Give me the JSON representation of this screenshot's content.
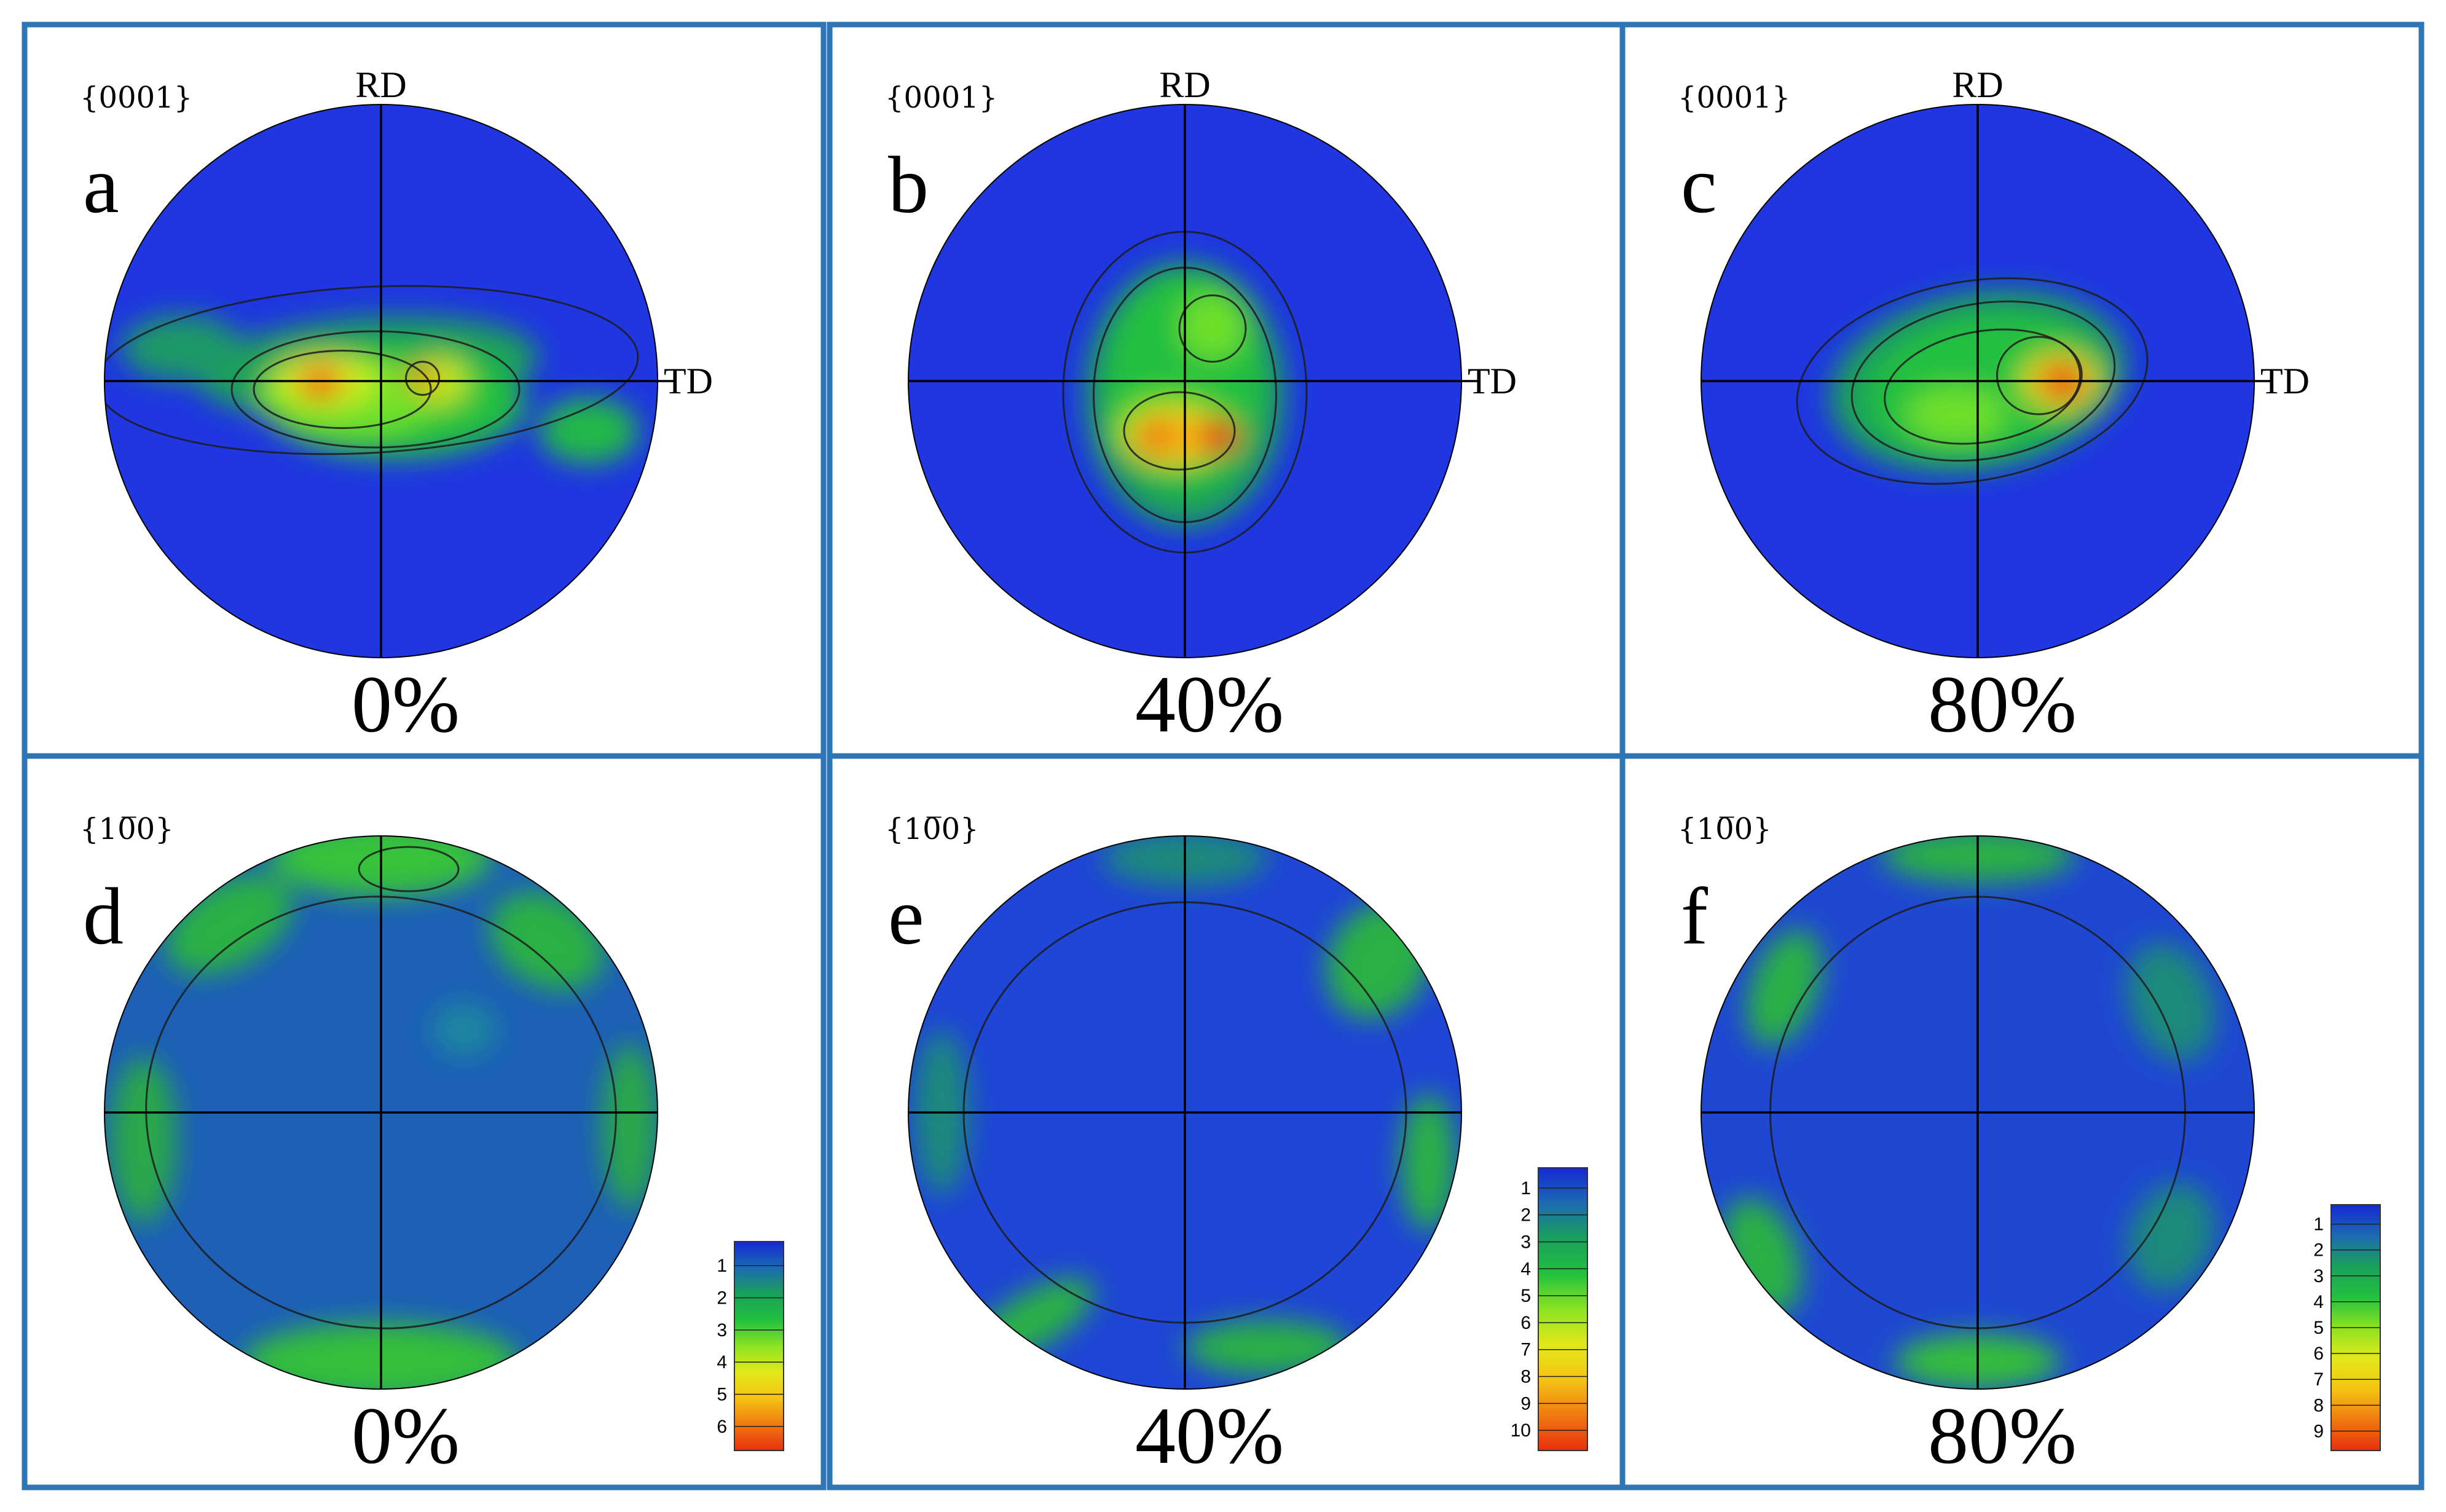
{
  "figure": {
    "panels": [
      {
        "id": "a",
        "letter": "a",
        "pole_figure": "{0001}",
        "strain": "0%",
        "show_axis_labels": true,
        "rd_label": "RD",
        "td_label": "TD",
        "background": "#1f36e0",
        "blobs": [
          {
            "u": -0.05,
            "v": -0.05,
            "rx": 0.62,
            "ry": 0.18,
            "rot": -4,
            "c": "#1aa05a"
          },
          {
            "u": 0.05,
            "v": 0.08,
            "rx": 0.47,
            "ry": 0.2,
            "rot": 0,
            "c": "#22c040"
          },
          {
            "u": -0.72,
            "v": -0.12,
            "rx": 0.22,
            "ry": 0.12,
            "rot": 0,
            "c": "#1a9966"
          },
          {
            "u": 0.75,
            "v": 0.18,
            "rx": 0.18,
            "ry": 0.12,
            "rot": 0,
            "c": "#22b84a"
          },
          {
            "u": -0.12,
            "v": 0.06,
            "rx": 0.33,
            "ry": 0.14,
            "rot": 0,
            "c": "#6ee02a"
          },
          {
            "u": -0.2,
            "v": 0.0,
            "rx": 0.2,
            "ry": 0.1,
            "rot": 0,
            "c": "#c2ee1a"
          },
          {
            "u": 0.22,
            "v": 0.0,
            "rx": 0.1,
            "ry": 0.09,
            "rot": 0,
            "c": "#bfe81a"
          },
          {
            "u": -0.22,
            "v": 0.0,
            "rx": 0.1,
            "ry": 0.07,
            "rot": 0,
            "c": "#f4c414"
          },
          {
            "u": -0.22,
            "v": 0.01,
            "rx": 0.06,
            "ry": 0.05,
            "rot": 0,
            "c": "#e82e10"
          },
          {
            "u": 0.15,
            "v": -0.01,
            "rx": 0.05,
            "ry": 0.05,
            "rot": 0,
            "c": "#f07a10"
          }
        ],
        "contours": [
          {
            "u": -0.05,
            "v": -0.04,
            "rx": 0.98,
            "ry": 0.3,
            "rot": -3
          },
          {
            "u": -0.02,
            "v": 0.03,
            "rx": 0.52,
            "ry": 0.21,
            "rot": 0
          },
          {
            "u": -0.14,
            "v": 0.03,
            "rx": 0.32,
            "ry": 0.14,
            "rot": 0
          },
          {
            "u": 0.15,
            "v": -0.01,
            "rx": 0.06,
            "ry": 0.06,
            "rot": 0
          }
        ]
      },
      {
        "id": "b",
        "letter": "b",
        "pole_figure": "{0001}",
        "strain": "40%",
        "show_axis_labels": true,
        "rd_label": "RD",
        "td_label": "TD",
        "background": "#1f36e0",
        "blobs": [
          {
            "u": 0.0,
            "v": 0.05,
            "rx": 0.36,
            "ry": 0.48,
            "rot": 0,
            "c": "#1aa05a"
          },
          {
            "u": 0.0,
            "v": 0.0,
            "rx": 0.28,
            "ry": 0.4,
            "rot": 0,
            "c": "#22c040"
          },
          {
            "u": -0.05,
            "v": 0.18,
            "rx": 0.22,
            "ry": 0.14,
            "rot": 0,
            "c": "#6ee02a"
          },
          {
            "u": 0.1,
            "v": -0.2,
            "rx": 0.12,
            "ry": 0.12,
            "rot": 0,
            "c": "#6ee02a"
          },
          {
            "u": -0.04,
            "v": 0.2,
            "rx": 0.17,
            "ry": 0.1,
            "rot": 0,
            "c": "#f4c414"
          },
          {
            "u": -0.1,
            "v": 0.2,
            "rx": 0.08,
            "ry": 0.06,
            "rot": 0,
            "c": "#f07a10"
          },
          {
            "u": 0.12,
            "v": 0.2,
            "rx": 0.08,
            "ry": 0.06,
            "rot": 0,
            "c": "#e82e10"
          }
        ],
        "contours": [
          {
            "u": 0.0,
            "v": 0.04,
            "rx": 0.44,
            "ry": 0.58,
            "rot": 0
          },
          {
            "u": 0.0,
            "v": 0.05,
            "rx": 0.33,
            "ry": 0.46,
            "rot": 0
          },
          {
            "u": -0.02,
            "v": 0.18,
            "rx": 0.2,
            "ry": 0.14,
            "rot": 0
          },
          {
            "u": 0.1,
            "v": -0.19,
            "rx": 0.12,
            "ry": 0.12,
            "rot": 0
          }
        ]
      },
      {
        "id": "c",
        "letter": "c",
        "pole_figure": "{0001}",
        "strain": "80%",
        "show_axis_labels": true,
        "rd_label": "RD",
        "td_label": "TD",
        "background": "#1f36e0",
        "blobs": [
          {
            "u": 0.0,
            "v": 0.0,
            "rx": 0.54,
            "ry": 0.32,
            "rot": -10,
            "c": "#1aa05a"
          },
          {
            "u": 0.02,
            "v": 0.02,
            "rx": 0.42,
            "ry": 0.25,
            "rot": -10,
            "c": "#22c040"
          },
          {
            "u": -0.08,
            "v": 0.12,
            "rx": 0.18,
            "ry": 0.1,
            "rot": 0,
            "c": "#6ee02a"
          },
          {
            "u": 0.3,
            "v": 0.0,
            "rx": 0.15,
            "ry": 0.11,
            "rot": 0,
            "c": "#c2ee1a"
          },
          {
            "u": 0.3,
            "v": 0.0,
            "rx": 0.1,
            "ry": 0.08,
            "rot": 0,
            "c": "#f07a10"
          },
          {
            "u": 0.33,
            "v": 0.01,
            "rx": 0.05,
            "ry": 0.05,
            "rot": 0,
            "c": "#e82e10"
          }
        ],
        "contours": [
          {
            "u": -0.02,
            "v": 0.0,
            "rx": 0.64,
            "ry": 0.36,
            "rot": -10
          },
          {
            "u": 0.02,
            "v": 0.0,
            "rx": 0.48,
            "ry": 0.28,
            "rot": -10
          },
          {
            "u": 0.02,
            "v": 0.02,
            "rx": 0.36,
            "ry": 0.2,
            "rot": -10
          },
          {
            "u": 0.22,
            "v": -0.02,
            "rx": 0.15,
            "ry": 0.14,
            "rot": 0
          }
        ]
      },
      {
        "id": "d",
        "letter": "d",
        "pole_figure": "{10̅0}",
        "strain": "0%",
        "show_axis_labels": false,
        "background": "#1d60b6",
        "blobs": [
          {
            "u": 0.0,
            "v": -0.92,
            "rx": 0.4,
            "ry": 0.14,
            "rot": 0,
            "c": "#39c23a"
          },
          {
            "u": -0.55,
            "v": -0.68,
            "rx": 0.25,
            "ry": 0.15,
            "rot": -30,
            "c": "#2ab044"
          },
          {
            "u": 0.6,
            "v": -0.62,
            "rx": 0.22,
            "ry": 0.16,
            "rot": 30,
            "c": "#2ab044"
          },
          {
            "u": 0.0,
            "v": 0.9,
            "rx": 0.5,
            "ry": 0.14,
            "rot": 0,
            "c": "#36be3a"
          },
          {
            "u": -0.86,
            "v": 0.1,
            "rx": 0.12,
            "ry": 0.3,
            "rot": 0,
            "c": "#29a848"
          },
          {
            "u": 0.9,
            "v": 0.05,
            "rx": 0.1,
            "ry": 0.3,
            "rot": 0,
            "c": "#29a848"
          },
          {
            "u": 0.3,
            "v": -0.3,
            "rx": 0.12,
            "ry": 0.1,
            "rot": 0,
            "c": "#1f86a0"
          }
        ],
        "contours": [
          {
            "u": 0.0,
            "v": 0.0,
            "rx": 0.85,
            "ry": 0.78,
            "rot": 5
          },
          {
            "u": 0.1,
            "v": -0.88,
            "rx": 0.18,
            "ry": 0.08,
            "rot": 0
          }
        ],
        "colorbar": {
          "ticks": [
            "1",
            "2",
            "3",
            "4",
            "5",
            "6"
          ],
          "colors": [
            "#1428d4",
            "#1c6ab2",
            "#1aa05a",
            "#22c040",
            "#8be322",
            "#e3e81a",
            "#f4c414",
            "#f07a10",
            "#e82e10"
          ]
        }
      },
      {
        "id": "e",
        "letter": "e",
        "pole_figure": "{10̅0}",
        "strain": "40%",
        "show_axis_labels": false,
        "background": "#1f46d6",
        "blobs": [
          {
            "u": 0.0,
            "v": -0.92,
            "rx": 0.3,
            "ry": 0.1,
            "rot": 0,
            "c": "#1d8a7a"
          },
          {
            "u": 0.7,
            "v": -0.55,
            "rx": 0.18,
            "ry": 0.22,
            "rot": 30,
            "c": "#2ab044"
          },
          {
            "u": -0.88,
            "v": 0.0,
            "rx": 0.1,
            "ry": 0.3,
            "rot": 0,
            "c": "#1d8a7a"
          },
          {
            "u": 0.88,
            "v": 0.18,
            "rx": 0.1,
            "ry": 0.25,
            "rot": 0,
            "c": "#2ab044"
          },
          {
            "u": -0.55,
            "v": 0.75,
            "rx": 0.25,
            "ry": 0.1,
            "rot": -30,
            "c": "#2ab044"
          },
          {
            "u": 0.3,
            "v": 0.85,
            "rx": 0.3,
            "ry": 0.1,
            "rot": 0,
            "c": "#2ab044"
          }
        ],
        "contours": [
          {
            "u": 0.0,
            "v": 0.0,
            "rx": 0.8,
            "ry": 0.76,
            "rot": 0
          }
        ],
        "colorbar": {
          "ticks": [
            "1",
            "2",
            "3",
            "4",
            "5",
            "6",
            "7",
            "8",
            "9",
            "10"
          ],
          "colors": [
            "#1428d4",
            "#1c6ab2",
            "#1aa05a",
            "#22c040",
            "#8be322",
            "#e3e81a",
            "#f4c414",
            "#f07a10",
            "#e82e10"
          ]
        }
      },
      {
        "id": "f",
        "letter": "f",
        "pole_figure": "{10̅0}",
        "strain": "80%",
        "show_axis_labels": false,
        "background": "#1f48d2",
        "blobs": [
          {
            "u": 0.0,
            "v": -0.93,
            "rx": 0.35,
            "ry": 0.1,
            "rot": 0,
            "c": "#2ab044"
          },
          {
            "u": -0.7,
            "v": -0.45,
            "rx": 0.12,
            "ry": 0.22,
            "rot": 20,
            "c": "#2ab044"
          },
          {
            "u": 0.7,
            "v": -0.4,
            "rx": 0.15,
            "ry": 0.22,
            "rot": -20,
            "c": "#1d8a7a"
          },
          {
            "u": -0.78,
            "v": 0.52,
            "rx": 0.13,
            "ry": 0.22,
            "rot": -20,
            "c": "#2ab044"
          },
          {
            "u": 0.7,
            "v": 0.45,
            "rx": 0.15,
            "ry": 0.2,
            "rot": 20,
            "c": "#1d8a7a"
          },
          {
            "u": 0.0,
            "v": 0.9,
            "rx": 0.3,
            "ry": 0.1,
            "rot": 0,
            "c": "#36be3a"
          }
        ],
        "contours": [
          {
            "u": 0.0,
            "v": 0.0,
            "rx": 0.75,
            "ry": 0.78,
            "rot": 0
          }
        ],
        "colorbar": {
          "ticks": [
            "1",
            "2",
            "3",
            "4",
            "5",
            "6",
            "7",
            "8",
            "9"
          ],
          "colors": [
            "#1428d4",
            "#1c6ab2",
            "#1aa05a",
            "#22c040",
            "#8be322",
            "#e3e81a",
            "#f4c414",
            "#f07a10",
            "#e82e10"
          ]
        }
      }
    ]
  },
  "chart_data": {
    "type": "heatmap",
    "title": "",
    "xlabel": "TD",
    "ylabel": "RD",
    "panels": [
      {
        "panel": "a",
        "plane": "{0001}",
        "strain": "0%",
        "axes": [
          "RD",
          "TD"
        ]
      },
      {
        "panel": "b",
        "plane": "{0001}",
        "strain": "40%",
        "axes": [
          "RD",
          "TD"
        ]
      },
      {
        "panel": "c",
        "plane": "{0001}",
        "strain": "80%",
        "axes": [
          "RD",
          "TD"
        ]
      },
      {
        "panel": "d",
        "plane": "{10̅0}",
        "strain": "0%",
        "colorbar_ticks": [
          1,
          2,
          3,
          4,
          5,
          6
        ]
      },
      {
        "panel": "e",
        "plane": "{10̅0}",
        "strain": "40%",
        "colorbar_ticks": [
          1,
          2,
          3,
          4,
          5,
          6,
          7,
          8,
          9,
          10
        ]
      },
      {
        "panel": "f",
        "plane": "{10̅0}",
        "strain": "80%",
        "colorbar_ticks": [
          1,
          2,
          3,
          4,
          5,
          6,
          7,
          8,
          9
        ]
      }
    ]
  }
}
